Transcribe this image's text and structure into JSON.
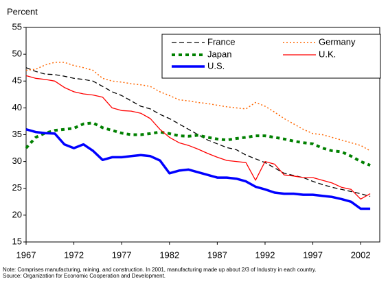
{
  "chart_data": {
    "type": "line",
    "y_label": "Percent",
    "note": "Note: Comprises manufacturing, mining, and construction. In 2001, manufacturing made up about 2/3 of Industry in each country.",
    "source": "Source:  Organization for Economic Cooperation and Development.",
    "x": [
      1967,
      1968,
      1969,
      1970,
      1971,
      1972,
      1973,
      1974,
      1975,
      1976,
      1977,
      1978,
      1979,
      1980,
      1981,
      1982,
      1983,
      1984,
      1985,
      1986,
      1987,
      1988,
      1989,
      1990,
      1991,
      1992,
      1993,
      1994,
      1995,
      1996,
      1997,
      1998,
      1999,
      2000,
      2001,
      2002,
      2003
    ],
    "xlim": [
      1967,
      2004
    ],
    "xticks": [
      1967,
      1972,
      1977,
      1982,
      1987,
      1992,
      1997,
      2002
    ],
    "ylim": [
      15,
      55
    ],
    "yticks": [
      15,
      20,
      25,
      30,
      35,
      40,
      45,
      50,
      55
    ],
    "series": [
      {
        "name": "France",
        "color": "#000000",
        "values": [
          47.5,
          46.8,
          46.3,
          46.2,
          45.9,
          45.5,
          45.3,
          45.0,
          44.0,
          43.0,
          42.3,
          41.3,
          40.3,
          39.8,
          38.8,
          38.0,
          37.0,
          36.0,
          35.0,
          34.0,
          33.3,
          32.6,
          32.2,
          31.2,
          30.5,
          29.8,
          28.8,
          27.8,
          27.4,
          27.0,
          26.3,
          25.7,
          25.2,
          24.8,
          24.4,
          24.0,
          23.5
        ]
      },
      {
        "name": "Germany",
        "color": "#ff6600",
        "values": [
          47.0,
          47.2,
          48.0,
          48.5,
          48.5,
          47.9,
          47.5,
          47.0,
          45.5,
          45.0,
          44.8,
          44.5,
          44.3,
          44.0,
          43.0,
          42.3,
          41.5,
          41.3,
          41.0,
          40.8,
          40.5,
          40.2,
          40.0,
          39.8,
          41.0,
          40.3,
          39.2,
          38.0,
          37.0,
          36.0,
          35.2,
          35.0,
          34.5,
          34.0,
          33.5,
          33.0,
          32.0
        ]
      },
      {
        "name": "Japan",
        "color": "#008000",
        "values": [
          32.5,
          34.5,
          35.3,
          35.8,
          36.0,
          36.2,
          37.0,
          37.2,
          36.3,
          35.8,
          35.3,
          35.0,
          35.0,
          35.2,
          35.5,
          35.2,
          34.8,
          34.7,
          34.9,
          34.5,
          34.2,
          34.0,
          34.3,
          34.5,
          34.8,
          34.8,
          34.5,
          34.2,
          33.8,
          33.5,
          33.3,
          32.5,
          32.0,
          31.8,
          31.0,
          30.0,
          29.3
        ]
      },
      {
        "name": "U.K.",
        "color": "#ff0000",
        "values": [
          46.0,
          45.5,
          45.3,
          45.0,
          43.8,
          43.0,
          42.6,
          42.4,
          42.0,
          40.0,
          39.5,
          39.4,
          39.0,
          38.0,
          36.0,
          34.5,
          33.5,
          33.0,
          32.3,
          31.5,
          30.8,
          30.2,
          30.0,
          29.8,
          26.5,
          30.0,
          29.5,
          27.5,
          27.3,
          27.0,
          27.0,
          26.5,
          26.0,
          25.2,
          24.8,
          23.0,
          24.0
        ]
      },
      {
        "name": "U.S.",
        "color": "#0000ff",
        "values": [
          36.0,
          35.5,
          35.3,
          35.2,
          33.2,
          32.5,
          33.2,
          32.0,
          30.3,
          30.8,
          30.8,
          31.0,
          31.2,
          31.0,
          30.2,
          27.8,
          28.3,
          28.5,
          28.0,
          27.5,
          27.0,
          27.0,
          26.8,
          26.3,
          25.3,
          24.8,
          24.2,
          24.0,
          24.0,
          23.8,
          23.8,
          23.6,
          23.4,
          23.0,
          22.5,
          21.2,
          21.2
        ]
      }
    ]
  }
}
